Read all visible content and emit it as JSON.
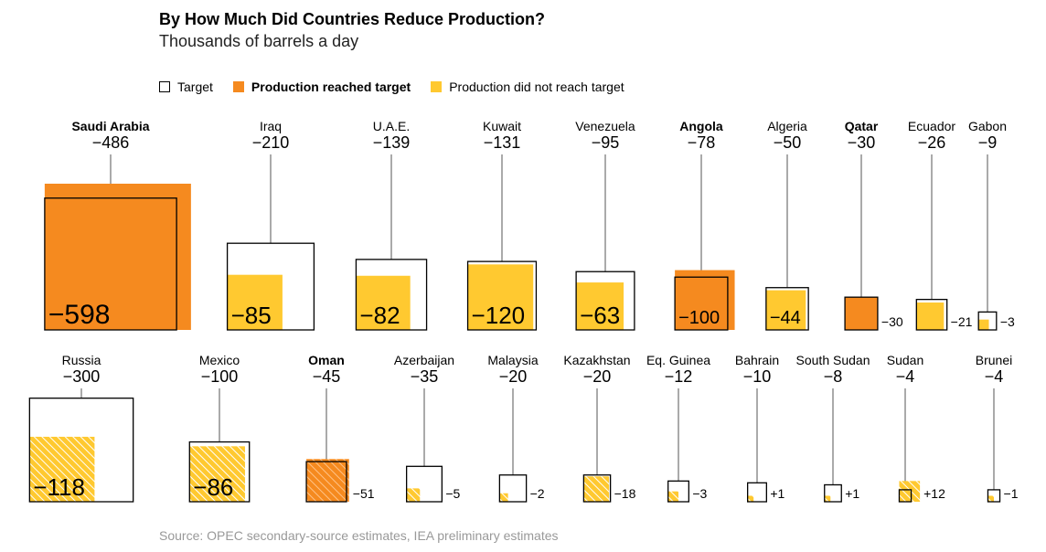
{
  "title": "By How Much Did Countries Reduce Production?",
  "subtitle": "Thousands of barrels a day",
  "legend": {
    "target": "Target",
    "reached": "Production reached target",
    "not_reached": "Production did not reach target"
  },
  "source": "Source: OPEC secondary-source estimates, IEA preliminary estimates",
  "colors": {
    "reached": "#f58a1f",
    "not_reached": "#ffc930",
    "target_stroke": "#000000",
    "stem": "#555555"
  },
  "chart_data": {
    "type": "bar",
    "units": "Thousands of barrels a day",
    "encoding": "square area proportional to magnitude",
    "rows": [
      [
        {
          "country": "Saudi Arabia",
          "target": "−486",
          "target_value": -486,
          "actual": "−598",
          "actual_value": -598,
          "status": "reached",
          "hatched": false,
          "bold": true
        },
        {
          "country": "Iraq",
          "target": "−210",
          "target_value": -210,
          "actual": "−85",
          "actual_value": -85,
          "status": "not_reached",
          "hatched": false,
          "bold": false
        },
        {
          "country": "U.A.E.",
          "target": "−139",
          "target_value": -139,
          "actual": "−82",
          "actual_value": -82,
          "status": "not_reached",
          "hatched": false,
          "bold": false
        },
        {
          "country": "Kuwait",
          "target": "−131",
          "target_value": -131,
          "actual": "−120",
          "actual_value": -120,
          "status": "not_reached",
          "hatched": false,
          "bold": false
        },
        {
          "country": "Venezuela",
          "target": "−95",
          "target_value": -95,
          "actual": "−63",
          "actual_value": -63,
          "status": "not_reached",
          "hatched": false,
          "bold": false
        },
        {
          "country": "Angola",
          "target": "−78",
          "target_value": -78,
          "actual": "−100",
          "actual_value": -100,
          "status": "reached",
          "hatched": false,
          "bold": true
        },
        {
          "country": "Algeria",
          "target": "−50",
          "target_value": -50,
          "actual": "−44",
          "actual_value": -44,
          "status": "not_reached",
          "hatched": false,
          "bold": false
        },
        {
          "country": "Qatar",
          "target": "−30",
          "target_value": -30,
          "actual": "−30",
          "actual_value": -30,
          "status": "reached",
          "hatched": false,
          "bold": true
        },
        {
          "country": "Ecuador",
          "target": "−26",
          "target_value": -26,
          "actual": "−21",
          "actual_value": -21,
          "status": "not_reached",
          "hatched": false,
          "bold": false
        },
        {
          "country": "Gabon",
          "target": "−9",
          "target_value": -9,
          "actual": "−3",
          "actual_value": -3,
          "status": "not_reached",
          "hatched": false,
          "bold": false
        }
      ],
      [
        {
          "country": "Russia",
          "target": "−300",
          "target_value": -300,
          "actual": "−118",
          "actual_value": -118,
          "status": "not_reached",
          "hatched": true,
          "bold": false
        },
        {
          "country": "Mexico",
          "target": "−100",
          "target_value": -100,
          "actual": "−86",
          "actual_value": -86,
          "status": "not_reached",
          "hatched": true,
          "bold": false
        },
        {
          "country": "Oman",
          "target": "−45",
          "target_value": -45,
          "actual": "−51",
          "actual_value": -51,
          "status": "reached",
          "hatched": true,
          "bold": true
        },
        {
          "country": "Azerbaijan",
          "target": "−35",
          "target_value": -35,
          "actual": "−5",
          "actual_value": -5,
          "status": "not_reached",
          "hatched": true,
          "bold": false
        },
        {
          "country": "Malaysia",
          "target": "−20",
          "target_value": -20,
          "actual": "−2",
          "actual_value": -2,
          "status": "not_reached",
          "hatched": true,
          "bold": false
        },
        {
          "country": "Kazakhstan",
          "target": "−20",
          "target_value": -20,
          "actual": "−18",
          "actual_value": -18,
          "status": "not_reached",
          "hatched": true,
          "bold": false
        },
        {
          "country": "Eq. Guinea",
          "target": "−12",
          "target_value": -12,
          "actual": "−3",
          "actual_value": -3,
          "status": "not_reached",
          "hatched": true,
          "bold": false
        },
        {
          "country": "Bahrain",
          "target": "−10",
          "target_value": -10,
          "actual": "+1",
          "actual_value": 1,
          "status": "not_reached",
          "hatched": true,
          "bold": false
        },
        {
          "country": "South Sudan",
          "target": "−8",
          "target_value": -8,
          "actual": "+1",
          "actual_value": 1,
          "status": "not_reached",
          "hatched": true,
          "bold": false
        },
        {
          "country": "Sudan",
          "target": "−4",
          "target_value": -4,
          "actual": "+12",
          "actual_value": 12,
          "status": "not_reached",
          "hatched": true,
          "bold": false
        },
        {
          "country": "Brunei",
          "target": "−4",
          "target_value": -4,
          "actual": "−1",
          "actual_value": -1,
          "status": "not_reached",
          "hatched": true,
          "bold": false
        }
      ]
    ]
  }
}
